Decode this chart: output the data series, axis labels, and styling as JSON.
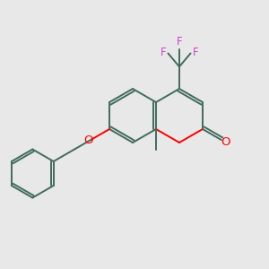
{
  "bg_color": "#e8e8e8",
  "bond_color": "#406b5e",
  "oxygen_color": "#ff0000",
  "fluorine_color": "#cc44cc",
  "lw": 1.4,
  "figsize": [
    3.0,
    3.0
  ],
  "dpi": 100,
  "xlim": [
    0,
    10
  ],
  "ylim": [
    0,
    10
  ]
}
